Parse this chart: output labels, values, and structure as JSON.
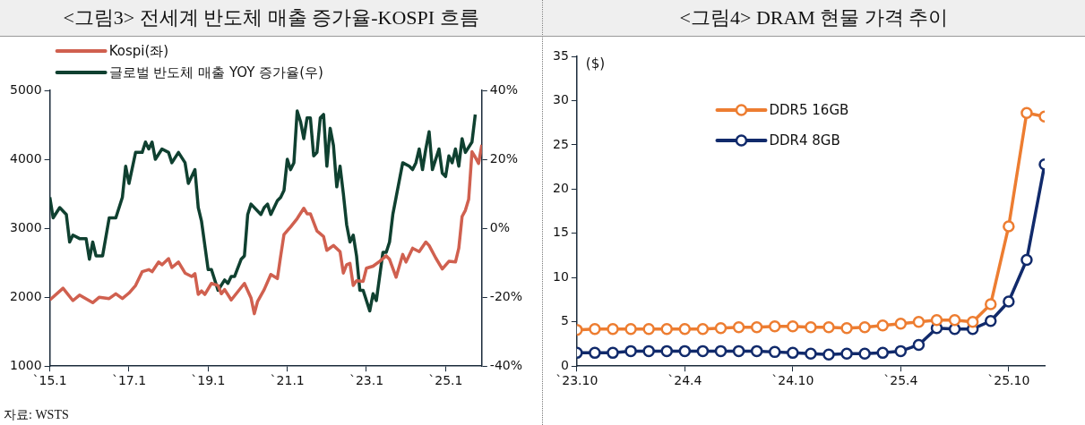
{
  "chart_data": [
    {
      "type": "line",
      "title": "<그림3> 전세계 반도체 매출 증가율-KOSPI 흐름",
      "legend": "top",
      "xlim": [
        "2015-01",
        "2025-12"
      ],
      "xticks": [
        {
          "value": "2015-01",
          "label": "`15.1"
        },
        {
          "value": "2017-01",
          "label": "`17.1"
        },
        {
          "value": "2019-01",
          "label": "`19.1"
        },
        {
          "value": "2021-01",
          "label": "`21.1"
        },
        {
          "value": "2023-01",
          "label": "`23.1"
        },
        {
          "value": "2025-01",
          "label": "`25.1"
        }
      ],
      "ylim": [
        1000,
        5000
      ],
      "yticks": [
        1000,
        2000,
        3000,
        4000,
        5000
      ],
      "y2lim": [
        -40,
        40
      ],
      "y2ticks": [
        {
          "value": -40,
          "label": "-40%"
        },
        {
          "value": -20,
          "label": "-20%"
        },
        {
          "value": 0,
          "label": "0%"
        },
        {
          "value": 20,
          "label": "20%"
        },
        {
          "value": 40,
          "label": "40%"
        }
      ],
      "annotations": [
        "자료: WSTS"
      ],
      "series": [
        {
          "name": "Kospi(좌)",
          "color": "#d0604f",
          "x": [
            "2015-01",
            "2015-05",
            "2015-08",
            "2015-10",
            "2016-02",
            "2016-04",
            "2016-07",
            "2016-09",
            "2016-11",
            "2017-01",
            "2017-03",
            "2017-05",
            "2017-07",
            "2017-08",
            "2017-10",
            "2017-11",
            "2018-01",
            "2018-02",
            "2018-04",
            "2018-06",
            "2018-08",
            "2018-09",
            "2018-10",
            "2018-11",
            "2018-12",
            "2019-02",
            "2019-04",
            "2019-05",
            "2019-06",
            "2019-08",
            "2019-10",
            "2019-12",
            "2020-02",
            "2020-03",
            "2020-04",
            "2020-06",
            "2020-08",
            "2020-10",
            "2020-11",
            "2020-12",
            "2021-02",
            "2021-04",
            "2021-06",
            "2021-07",
            "2021-08",
            "2021-10",
            "2021-12",
            "2022-01",
            "2022-03",
            "2022-05",
            "2022-06",
            "2022-07",
            "2022-08",
            "2022-09",
            "2022-10",
            "2022-12",
            "2023-01",
            "2023-03",
            "2023-05",
            "2023-07",
            "2023-08",
            "2023-10",
            "2023-12",
            "2024-01",
            "2024-03",
            "2024-05",
            "2024-07",
            "2024-08",
            "2024-10",
            "2024-12",
            "2025-02",
            "2025-04",
            "2025-05",
            "2025-06",
            "2025-07",
            "2025-08",
            "2025-09",
            "2025-10",
            "2025-11",
            "2025-12"
          ],
          "values": [
            1960,
            2130,
            1950,
            2030,
            1920,
            2000,
            1980,
            2050,
            1980,
            2060,
            2170,
            2370,
            2400,
            2370,
            2510,
            2470,
            2560,
            2430,
            2510,
            2350,
            2300,
            2340,
            2040,
            2090,
            2040,
            2200,
            2170,
            2050,
            2110,
            1960,
            2080,
            2200,
            1990,
            1760,
            1940,
            2110,
            2330,
            2270,
            2600,
            2910,
            3020,
            3140,
            3290,
            3210,
            3210,
            2960,
            2880,
            2680,
            2750,
            2660,
            2350,
            2470,
            2490,
            2170,
            2240,
            2230,
            2420,
            2450,
            2520,
            2600,
            2550,
            2290,
            2620,
            2510,
            2710,
            2660,
            2800,
            2750,
            2570,
            2410,
            2520,
            2510,
            2710,
            3170,
            3260,
            3420,
            4110,
            4030,
            3940,
            4210
          ]
        },
        {
          "name": "글로벌 반도체 매출 YOY 증가율(우)",
          "color": "#0f4030",
          "axis": "y2",
          "x": [
            "2015-01",
            "2015-02",
            "2015-04",
            "2015-06",
            "2015-07",
            "2015-08",
            "2015-10",
            "2015-12",
            "2016-01",
            "2016-02",
            "2016-03",
            "2016-05",
            "2016-07",
            "2016-09",
            "2016-11",
            "2016-12",
            "2017-01",
            "2017-03",
            "2017-05",
            "2017-06",
            "2017-07",
            "2017-08",
            "2017-09",
            "2017-11",
            "2018-01",
            "2018-02",
            "2018-04",
            "2018-06",
            "2018-07",
            "2018-09",
            "2018-10",
            "2018-11",
            "2019-01",
            "2019-02",
            "2019-04",
            "2019-06",
            "2019-07",
            "2019-08",
            "2019-09",
            "2019-11",
            "2019-12",
            "2020-01",
            "2020-02",
            "2020-05",
            "2020-06",
            "2020-07",
            "2020-08",
            "2020-10",
            "2020-11",
            "2020-12",
            "2021-01",
            "2021-02",
            "2021-03",
            "2021-04",
            "2021-05",
            "2021-06",
            "2021-07",
            "2021-08",
            "2021-09",
            "2021-10",
            "2021-11",
            "2021-12",
            "2022-01",
            "2022-02",
            "2022-03",
            "2022-04",
            "2022-05",
            "2022-06",
            "2022-07",
            "2022-08",
            "2022-09",
            "2022-10",
            "2022-11",
            "2022-12",
            "2023-02",
            "2023-03",
            "2023-04",
            "2023-06",
            "2023-07",
            "2023-08",
            "2023-09",
            "2023-10",
            "2023-12",
            "2024-02",
            "2024-03",
            "2024-04",
            "2024-05",
            "2024-06",
            "2024-07",
            "2024-08",
            "2024-09",
            "2024-11",
            "2024-12",
            "2025-01",
            "2025-02",
            "2025-03",
            "2025-04",
            "2025-05",
            "2025-06",
            "2025-07",
            "2025-09",
            "2025-10"
          ],
          "values": [
            9,
            3,
            6,
            4,
            -4,
            -2,
            -3,
            -3,
            -9,
            -4,
            -8,
            -8,
            3,
            3,
            9,
            18,
            13,
            22,
            22,
            25,
            23,
            25,
            20,
            23,
            22,
            19,
            22,
            19,
            13,
            17,
            6,
            2,
            -12,
            -12,
            -18,
            -15,
            -16,
            -14,
            -14,
            -9,
            -8,
            4,
            7,
            4,
            6,
            7,
            4,
            8,
            9,
            11,
            20,
            17,
            19,
            34,
            31,
            26,
            32,
            32,
            21,
            22,
            32,
            33,
            18,
            29,
            24,
            12,
            18,
            10,
            1,
            -4,
            -2,
            -8,
            -18,
            -18,
            -24,
            -19,
            -21,
            -7,
            -7,
            -4,
            4,
            9,
            19,
            18,
            17,
            19,
            23,
            17,
            23,
            28,
            17,
            23,
            16,
            15,
            21,
            19,
            23,
            18,
            26,
            22,
            25,
            33
          ]
        }
      ]
    },
    {
      "type": "line",
      "title": "<그림4> DRAM 현물 가격 추이",
      "ylabel": "($)",
      "legend": "top left",
      "marker": "circle",
      "xlim": [
        "2023-10",
        "2025-12"
      ],
      "xticks": [
        {
          "value": "2023-10",
          "label": "`23.10"
        },
        {
          "value": "2024-04",
          "label": "`24.4"
        },
        {
          "value": "2024-10",
          "label": "`24.10"
        },
        {
          "value": "2025-04",
          "label": "`25.4"
        },
        {
          "value": "2025-10",
          "label": "`25.10"
        }
      ],
      "ylim": [
        0,
        35
      ],
      "yticks": [
        0,
        5,
        10,
        15,
        20,
        25,
        30,
        35
      ],
      "x": [
        "2023-10",
        "2023-11",
        "2023-12",
        "2024-01",
        "2024-02",
        "2024-03",
        "2024-04",
        "2024-05",
        "2024-06",
        "2024-07",
        "2024-08",
        "2024-09",
        "2024-10",
        "2024-11",
        "2024-12",
        "2025-01",
        "2025-02",
        "2025-03",
        "2025-04",
        "2025-05",
        "2025-06",
        "2025-07",
        "2025-08",
        "2025-09",
        "2025-10",
        "2025-11",
        "2025-12"
      ],
      "series": [
        {
          "name": "DDR5 16GB",
          "color": "#ed7d31",
          "values": [
            4.1,
            4.2,
            4.2,
            4.2,
            4.2,
            4.2,
            4.2,
            4.2,
            4.3,
            4.4,
            4.4,
            4.5,
            4.5,
            4.4,
            4.4,
            4.3,
            4.4,
            4.6,
            4.8,
            5.0,
            5.2,
            5.2,
            5.0,
            7.0,
            15.8,
            28.6,
            28.2
          ]
        },
        {
          "name": "DDR4 8GB",
          "color": "#112a6b",
          "values": [
            1.5,
            1.5,
            1.5,
            1.7,
            1.7,
            1.7,
            1.7,
            1.7,
            1.7,
            1.7,
            1.7,
            1.6,
            1.5,
            1.4,
            1.3,
            1.4,
            1.4,
            1.5,
            1.7,
            2.4,
            4.3,
            4.2,
            4.2,
            5.1,
            7.3,
            12.0,
            22.8
          ]
        }
      ]
    }
  ]
}
